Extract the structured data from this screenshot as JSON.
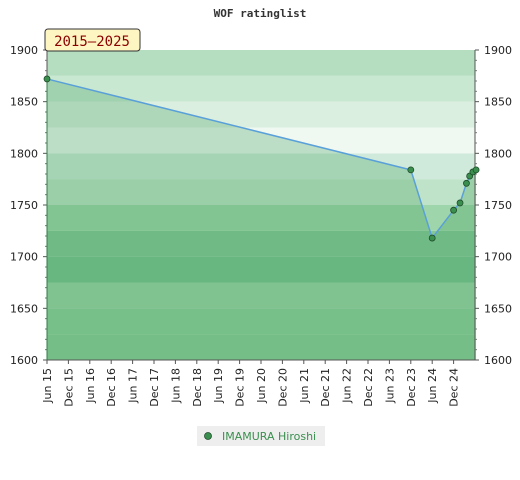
{
  "chart_data": {
    "type": "line",
    "title": "WOF ratinglist",
    "period_badge": "2015–2025",
    "xlabel": "",
    "ylabel": "",
    "y_ticks": [
      1600,
      1650,
      1700,
      1750,
      1800,
      1850,
      1900
    ],
    "ylim": [
      1600,
      1900
    ],
    "x_ticks": [
      "Jun 15",
      "Dec 15",
      "Jun 16",
      "Dec 16",
      "Jun 17",
      "Dec 17",
      "Jun 18",
      "Dec 18",
      "Jun 19",
      "Dec 19",
      "Jun 20",
      "Dec 20",
      "Jun 21",
      "Dec 21",
      "Jun 22",
      "Dec 22",
      "Jun 23",
      "Dec 23",
      "Jun 24",
      "Dec 24"
    ],
    "grid": false,
    "legend_position": "bottom",
    "series": [
      {
        "name": "IMAMURA Hiroshi",
        "color": "#5aa0d8",
        "marker_color": "#3a8f4f",
        "x": [
          0.0,
          17.0,
          18.0,
          19.0,
          19.3,
          19.6,
          19.75,
          19.9,
          20.05
        ],
        "y": [
          1872,
          1784,
          1718,
          1745,
          1752,
          1771,
          1778,
          1782,
          1784
        ]
      }
    ]
  }
}
